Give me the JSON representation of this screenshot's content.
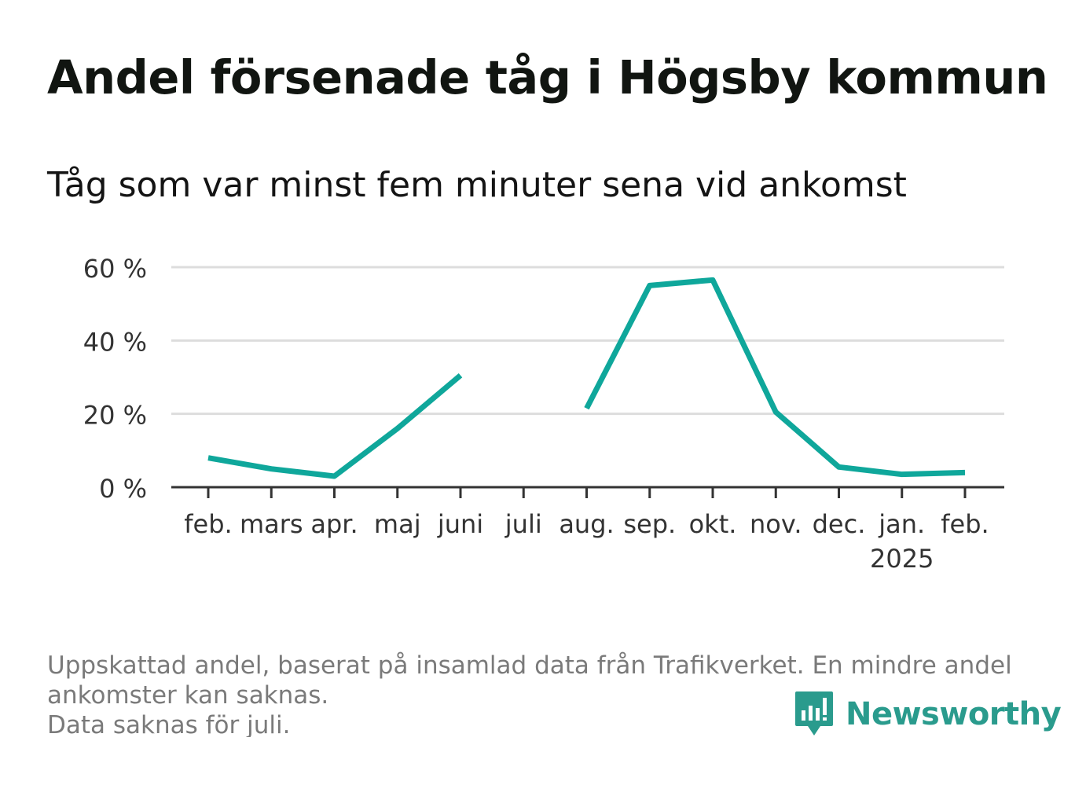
{
  "title": "Andel försenade tåg i Högsby kommun",
  "subtitle": "Tåg som var minst fem minuter sena vid ankomst",
  "footer": {
    "line1": "Uppskattad andel, baserat på insamlad data från Trafikverket. En mindre andel",
    "line2": "ankomster kan saknas.",
    "line3": "Data saknas för juli."
  },
  "brand": {
    "name": "Newsworthy",
    "color": "#2a9b8d",
    "icon": "newsworthy-logo-icon"
  },
  "colors": {
    "line": "#0fa79b",
    "grid": "#dddddd",
    "axis": "#333333"
  },
  "chart_data": {
    "type": "line",
    "categories": [
      "feb.",
      "mars",
      "apr.",
      "maj",
      "juni",
      "juli",
      "aug.",
      "sep.",
      "okt.",
      "nov.",
      "dec.",
      "jan.",
      "feb."
    ],
    "category_sublabels": [
      "",
      "",
      "",
      "",
      "",
      "",
      "",
      "",
      "",
      "",
      "",
      "2025",
      ""
    ],
    "series": [
      {
        "values": [
          8,
          5,
          3,
          16,
          30.5,
          null,
          21.5,
          55,
          56.5,
          20.5,
          5.5,
          3.5,
          4
        ]
      }
    ],
    "yticks": [
      0,
      20,
      40,
      60
    ],
    "ytick_labels": [
      "0 %",
      "20 %",
      "40 %",
      "60 %"
    ],
    "ylim": [
      0,
      60
    ],
    "grid": true,
    "legend": "none"
  }
}
